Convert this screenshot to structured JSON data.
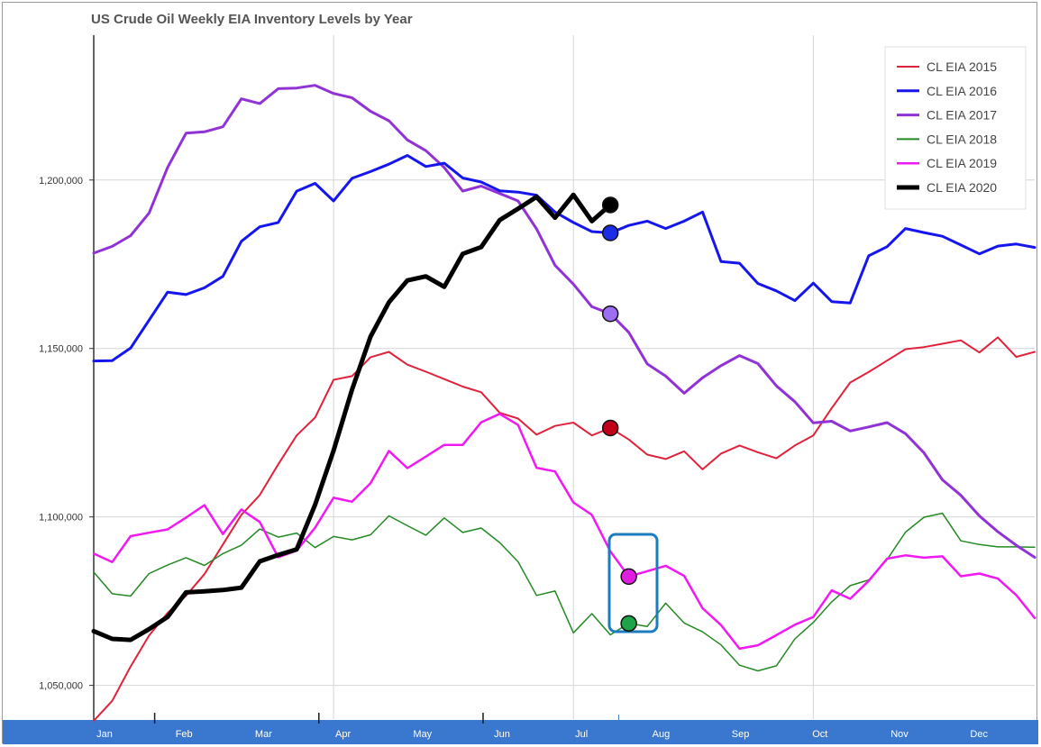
{
  "chart_data": {
    "type": "line",
    "title": "US Crude Oil Weekly EIA Inventory Levels by Year",
    "xlabel": "",
    "ylabel": "",
    "x_ticks": [
      "Jan",
      "Feb",
      "Mar",
      "Apr",
      "May",
      "Jun",
      "Jul",
      "Aug",
      "Sep",
      "Oct",
      "Nov",
      "Dec"
    ],
    "x_range": [
      1,
      52
    ],
    "y_ticks": [
      "1,050,000",
      "1,100,000",
      "1,150,000",
      "1,200,000"
    ],
    "ylim": [
      1040000,
      1243000
    ],
    "grid": true,
    "legend_position": "top-right",
    "series": [
      {
        "name": "CL EIA 2015",
        "color": "#e0223c",
        "width": 2,
        "values": [
          1039500,
          1045400,
          1055600,
          1064800,
          1071500,
          1076600,
          1083000,
          1091800,
          1100600,
          1106500,
          1115600,
          1124200,
          1129500,
          1140700,
          1141800,
          1147400,
          1149000,
          1145200,
          1143100,
          1140900,
          1138700,
          1137000,
          1130900,
          1129200,
          1124400,
          1127000,
          1128000,
          1124200,
          1126400,
          1123000,
          1118500,
          1117200,
          1119500,
          1114100,
          1118800,
          1121200,
          1119200,
          1117400,
          1121200,
          1124200,
          1132300,
          1139900,
          1143000,
          1146400,
          1149800,
          1150400,
          1151400,
          1152400,
          1148800,
          1153300,
          1147500,
          1149000
        ],
        "marker_at": 28
      },
      {
        "name": "CL EIA 2016",
        "color": "#1515ee",
        "width": 3,
        "values": [
          1146300,
          1146400,
          1150100,
          1158400,
          1166700,
          1166000,
          1168000,
          1171400,
          1181800,
          1186100,
          1187400,
          1196700,
          1199000,
          1193800,
          1200500,
          1202500,
          1204700,
          1207300,
          1204000,
          1205000,
          1200600,
          1199400,
          1196800,
          1196400,
          1195500,
          1190500,
          1187400,
          1184700,
          1184300,
          1186500,
          1187800,
          1185600,
          1187800,
          1190500,
          1175800,
          1175300,
          1169300,
          1167100,
          1164200,
          1169400,
          1163900,
          1163500,
          1177500,
          1180200,
          1185600,
          1184400,
          1183300,
          1180700,
          1178100,
          1180400,
          1181000,
          1180000
        ],
        "marker_at": 28
      },
      {
        "name": "CL EIA 2017",
        "color": "#9132d6",
        "width": 3,
        "values": [
          1178300,
          1180300,
          1183500,
          1190200,
          1203700,
          1213900,
          1214300,
          1215800,
          1224100,
          1222700,
          1227100,
          1227300,
          1228100,
          1225700,
          1224400,
          1220400,
          1217600,
          1211900,
          1208700,
          1203700,
          1196700,
          1198200,
          1196000,
          1193800,
          1185500,
          1174700,
          1169100,
          1162400,
          1160300,
          1154800,
          1145400,
          1141800,
          1136700,
          1141300,
          1144900,
          1147900,
          1145500,
          1138900,
          1134200,
          1127900,
          1128400,
          1125500,
          1126700,
          1128000,
          1124700,
          1119000,
          1111000,
          1106400,
          1100300,
          1095600,
          1091600,
          1088000
        ],
        "marker_at": 28
      },
      {
        "name": "CL EIA 2018",
        "color": "#238a23",
        "width": 1.5,
        "values": [
          1083600,
          1077200,
          1076500,
          1083200,
          1085700,
          1087900,
          1085600,
          1089100,
          1091600,
          1096400,
          1094000,
          1095200,
          1090900,
          1094200,
          1093200,
          1094700,
          1100300,
          1097400,
          1094600,
          1099700,
          1095400,
          1096700,
          1092400,
          1086700,
          1076700,
          1078000,
          1065600,
          1071300,
          1065000,
          1068400,
          1067500,
          1074400,
          1068500,
          1065900,
          1062000,
          1056000,
          1054300,
          1055800,
          1063800,
          1068700,
          1074800,
          1079600,
          1081300,
          1087300,
          1095500,
          1099900,
          1101100,
          1092900,
          1091800,
          1091100,
          1091100,
          1091000
        ],
        "marker_at": 29
      },
      {
        "name": "CL EIA 2019",
        "color": "#f218f2",
        "width": 2.5,
        "values": [
          1089100,
          1086600,
          1094300,
          1095300,
          1096300,
          1099800,
          1103500,
          1094900,
          1102200,
          1098500,
          1088000,
          1090000,
          1096800,
          1105700,
          1104500,
          1110000,
          1119600,
          1114500,
          1117900,
          1121400,
          1121400,
          1128100,
          1130600,
          1127300,
          1114600,
          1113500,
          1104300,
          1100600,
          1089800,
          1082300,
          1083900,
          1085500,
          1082500,
          1072900,
          1067900,
          1060900,
          1061900,
          1064900,
          1068000,
          1070300,
          1078200,
          1075700,
          1081000,
          1087600,
          1088600,
          1087900,
          1088300,
          1082400,
          1083200,
          1081700,
          1076800,
          1070000
        ],
        "marker_at": 29
      },
      {
        "name": "CL EIA 2020",
        "color": "#000000",
        "width": 5,
        "values": [
          1066100,
          1063800,
          1063500,
          1066700,
          1070300,
          1077600,
          1077900,
          1078300,
          1079000,
          1086800,
          1088700,
          1090400,
          1103600,
          1119700,
          1137800,
          1153500,
          1163700,
          1170200,
          1171400,
          1168300,
          1178100,
          1180100,
          1188100,
          1191500,
          1195000,
          1188800,
          1195600,
          1187800,
          1192600
        ],
        "marker_at": 28
      }
    ],
    "markers": [
      {
        "series": "CL EIA 2020",
        "color": "#000000"
      },
      {
        "series": "CL EIA 2016",
        "color": "#1a2ee8"
      },
      {
        "series": "CL EIA 2017",
        "color": "#9c6ff0"
      },
      {
        "series": "CL EIA 2015",
        "color": "#c00018"
      },
      {
        "series": "CL EIA 2019",
        "color": "#e01ee0"
      },
      {
        "series": "CL EIA 2018",
        "color": "#1fa34a"
      }
    ],
    "highlight_box_color": "#1b7dc0",
    "axis_band_color": "#3a77cf"
  }
}
